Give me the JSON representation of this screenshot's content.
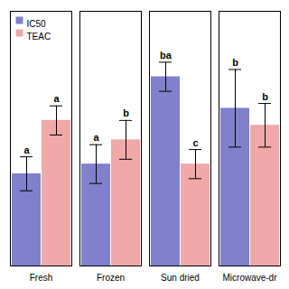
{
  "chart_data": {
    "type": "bar",
    "categories": [
      "Fresh",
      "Frozen",
      "Sun dried",
      "Microwave-dr"
    ],
    "series": [
      {
        "name": "IC50",
        "color": "#8080cc",
        "values": [
          0.38,
          0.42,
          0.78,
          0.65
        ],
        "errors": [
          0.07,
          0.08,
          0.06,
          0.16
        ],
        "labels": [
          "a",
          "a",
          "ba",
          "b"
        ]
      },
      {
        "name": "TEAC",
        "color": "#f0a8a8",
        "values": [
          0.6,
          0.52,
          0.42,
          0.58
        ],
        "errors": [
          0.06,
          0.08,
          0.06,
          0.09
        ],
        "labels": [
          "a",
          "b",
          "c",
          "b"
        ]
      }
    ],
    "ylim": [
      0,
      1.05
    ],
    "yticks": [],
    "tick_labels": "x",
    "grid": false,
    "legend": "upper left"
  }
}
